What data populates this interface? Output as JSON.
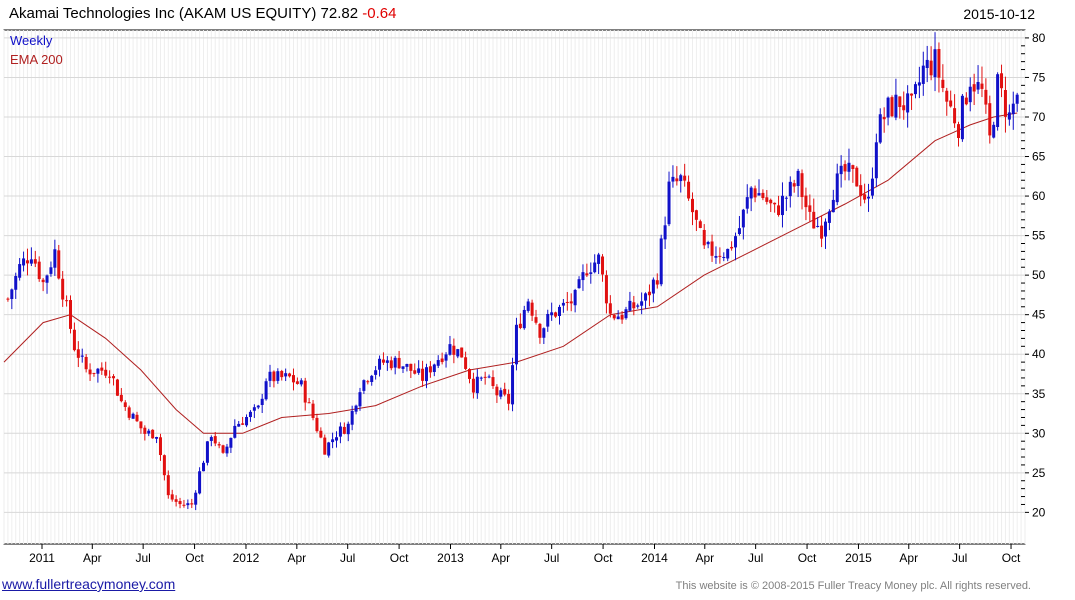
{
  "header": {
    "company": "Akamai Technologies Inc (AKAM US EQUITY)",
    "last": "72.82",
    "change": "-0.64",
    "date": "2015-10-12"
  },
  "footer": {
    "url": "www.fullertreacymoney.com",
    "copyright": "This website is © 2008-2015 Fuller Treacy Money plc. All rights reserved."
  },
  "colors": {
    "up": "#1010c8",
    "down": "#e01010",
    "ema": "#b02020",
    "grid": "#d8d8d8"
  },
  "chart_data": {
    "type": "candlestick",
    "frequency": "Weekly",
    "legend": [
      {
        "label": "Weekly",
        "color": "#1010c8"
      },
      {
        "label": "EMA 200",
        "color": "#b02020"
      }
    ],
    "ylim": [
      16,
      81
    ],
    "y_ticks": [
      20,
      25,
      30,
      35,
      40,
      45,
      50,
      55,
      60,
      65,
      70,
      75,
      80
    ],
    "x_range": [
      "2010-10-25",
      "2015-10-26"
    ],
    "x_ticks": [
      {
        "date": "2011-01-01",
        "label": "2011"
      },
      {
        "date": "2011-04-01",
        "label": "Apr"
      },
      {
        "date": "2011-07-01",
        "label": "Jul"
      },
      {
        "date": "2011-10-01",
        "label": "Oct"
      },
      {
        "date": "2012-01-01",
        "label": "2012"
      },
      {
        "date": "2012-04-01",
        "label": "Apr"
      },
      {
        "date": "2012-07-01",
        "label": "Jul"
      },
      {
        "date": "2012-10-01",
        "label": "Oct"
      },
      {
        "date": "2013-01-01",
        "label": "2013"
      },
      {
        "date": "2013-04-01",
        "label": "Apr"
      },
      {
        "date": "2013-07-01",
        "label": "Jul"
      },
      {
        "date": "2013-10-01",
        "label": "Oct"
      },
      {
        "date": "2014-01-01",
        "label": "2014"
      },
      {
        "date": "2014-04-01",
        "label": "Apr"
      },
      {
        "date": "2014-07-01",
        "label": "Jul"
      },
      {
        "date": "2014-10-01",
        "label": "Oct"
      },
      {
        "date": "2015-01-01",
        "label": "2015"
      },
      {
        "date": "2015-04-01",
        "label": "Apr"
      },
      {
        "date": "2015-07-01",
        "label": "Jul"
      },
      {
        "date": "2015-10-01",
        "label": "Oct"
      }
    ],
    "price_path": [
      [
        "2010-11-01",
        47
      ],
      [
        "2010-11-22",
        51
      ],
      [
        "2010-12-13",
        53
      ],
      [
        "2011-01-03",
        49
      ],
      [
        "2011-01-24",
        53
      ],
      [
        "2011-02-07",
        48
      ],
      [
        "2011-02-28",
        41
      ],
      [
        "2011-03-21",
        38
      ],
      [
        "2011-04-11",
        38
      ],
      [
        "2011-05-02",
        38
      ],
      [
        "2011-05-23",
        34
      ],
      [
        "2011-06-13",
        32
      ],
      [
        "2011-07-04",
        30
      ],
      [
        "2011-07-25",
        30
      ],
      [
        "2011-08-15",
        22
      ],
      [
        "2011-09-05",
        21
      ],
      [
        "2011-09-26",
        21
      ],
      [
        "2011-10-10",
        25
      ],
      [
        "2011-10-31",
        30
      ],
      [
        "2011-11-21",
        27
      ],
      [
        "2011-12-12",
        31
      ],
      [
        "2012-01-02",
        32
      ],
      [
        "2012-01-23",
        33
      ],
      [
        "2012-02-06",
        37
      ],
      [
        "2012-02-27",
        37
      ],
      [
        "2012-03-19",
        37
      ],
      [
        "2012-04-09",
        36
      ],
      [
        "2012-04-30",
        32
      ],
      [
        "2012-05-21",
        28
      ],
      [
        "2012-06-11",
        30
      ],
      [
        "2012-07-02",
        31
      ],
      [
        "2012-07-23",
        36
      ],
      [
        "2012-08-13",
        38
      ],
      [
        "2012-09-03",
        39
      ],
      [
        "2012-10-01",
        39
      ],
      [
        "2012-10-22",
        38
      ],
      [
        "2012-11-12",
        37
      ],
      [
        "2012-12-03",
        39
      ],
      [
        "2012-12-31",
        41
      ],
      [
        "2013-01-21",
        40
      ],
      [
        "2013-02-11",
        36
      ],
      [
        "2013-03-04",
        37
      ],
      [
        "2013-03-25",
        35
      ],
      [
        "2013-04-15",
        34
      ],
      [
        "2013-04-29",
        43
      ],
      [
        "2013-05-20",
        47
      ],
      [
        "2013-06-10",
        43
      ],
      [
        "2013-07-01",
        45
      ],
      [
        "2013-07-22",
        46
      ],
      [
        "2013-08-12",
        47
      ],
      [
        "2013-09-02",
        51
      ],
      [
        "2013-09-23",
        52
      ],
      [
        "2013-10-14",
        45
      ],
      [
        "2013-11-04",
        45
      ],
      [
        "2013-11-25",
        46
      ],
      [
        "2013-12-16",
        47
      ],
      [
        "2014-01-06",
        50
      ],
      [
        "2014-01-27",
        61
      ],
      [
        "2014-02-17",
        62
      ],
      [
        "2014-03-10",
        58
      ],
      [
        "2014-03-31",
        53
      ],
      [
        "2014-04-21",
        53
      ],
      [
        "2014-05-12",
        53
      ],
      [
        "2014-06-02",
        56
      ],
      [
        "2014-06-23",
        61
      ],
      [
        "2014-07-14",
        60
      ],
      [
        "2014-08-04",
        58
      ],
      [
        "2014-08-25",
        60
      ],
      [
        "2014-09-15",
        62
      ],
      [
        "2014-10-06",
        57
      ],
      [
        "2014-10-27",
        56
      ],
      [
        "2014-11-17",
        61
      ],
      [
        "2014-12-08",
        63
      ],
      [
        "2014-12-29",
        62
      ],
      [
        "2015-01-19",
        59
      ],
      [
        "2015-02-02",
        68
      ],
      [
        "2015-02-23",
        71
      ],
      [
        "2015-03-16",
        72
      ],
      [
        "2015-04-06",
        71
      ],
      [
        "2015-04-27",
        76
      ],
      [
        "2015-05-18",
        77
      ],
      [
        "2015-06-08",
        72
      ],
      [
        "2015-06-29",
        69
      ],
      [
        "2015-07-20",
        75
      ],
      [
        "2015-08-10",
        73
      ],
      [
        "2015-08-24",
        67
      ],
      [
        "2015-09-07",
        74
      ],
      [
        "2015-09-28",
        70
      ],
      [
        "2015-10-12",
        72.82
      ]
    ],
    "ema200": [
      [
        "2010-10-25",
        39
      ],
      [
        "2011-01-03",
        44
      ],
      [
        "2011-02-21",
        45
      ],
      [
        "2011-04-25",
        42
      ],
      [
        "2011-06-27",
        38
      ],
      [
        "2011-08-29",
        33
      ],
      [
        "2011-10-17",
        30
      ],
      [
        "2011-12-26",
        30
      ],
      [
        "2012-03-05",
        32
      ],
      [
        "2012-05-28",
        32.5
      ],
      [
        "2012-08-20",
        33.5
      ],
      [
        "2012-11-12",
        36
      ],
      [
        "2013-02-04",
        38
      ],
      [
        "2013-04-29",
        39
      ],
      [
        "2013-07-22",
        41
      ],
      [
        "2013-10-14",
        45
      ],
      [
        "2014-01-06",
        46
      ],
      [
        "2014-03-31",
        50
      ],
      [
        "2014-06-23",
        53
      ],
      [
        "2014-09-15",
        56
      ],
      [
        "2014-12-08",
        59
      ],
      [
        "2015-02-23",
        62
      ],
      [
        "2015-05-18",
        67
      ],
      [
        "2015-07-20",
        69
      ],
      [
        "2015-08-31",
        70
      ],
      [
        "2015-10-12",
        70.5
      ]
    ]
  }
}
